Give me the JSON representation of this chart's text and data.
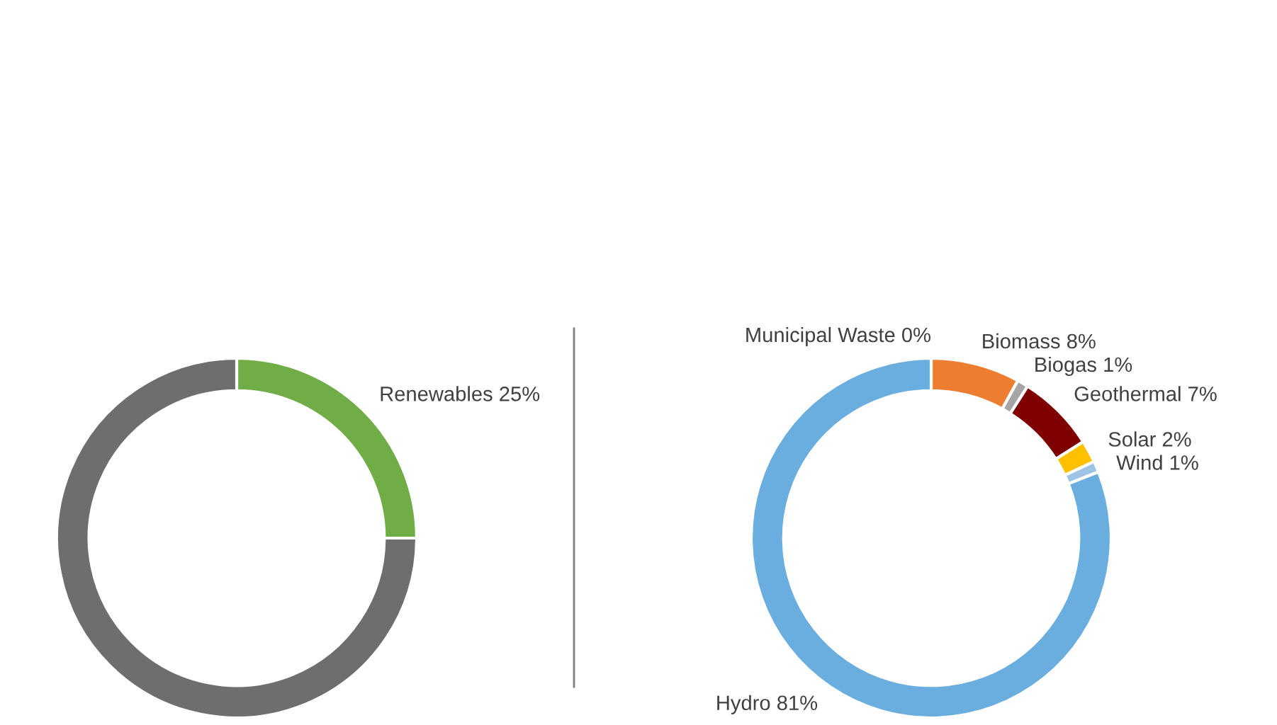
{
  "chart_data": [
    {
      "type": "donut",
      "categories": [
        "Renewables",
        null
      ],
      "values": [
        25,
        75
      ],
      "colors": [
        "#70ad47",
        "#6e6e6e"
      ],
      "value_labels": [
        "25%",
        null
      ]
    },
    {
      "type": "donut",
      "categories": [
        "Municipal Waste",
        "Biomass",
        "Biogas",
        "Geothermal",
        "Solar",
        "Wind",
        "Hydro"
      ],
      "values": [
        0,
        8,
        1,
        7,
        2,
        1,
        81
      ],
      "colors": [
        "#7f7f7f",
        "#ed7d31",
        "#a5a5a5",
        "#7f0000",
        "#ffc000",
        "#9dc3e6",
        "#6aaee0"
      ],
      "value_labels": [
        "0%",
        "8%",
        "1%",
        "7%",
        "2%",
        "1%",
        "81%"
      ]
    }
  ]
}
